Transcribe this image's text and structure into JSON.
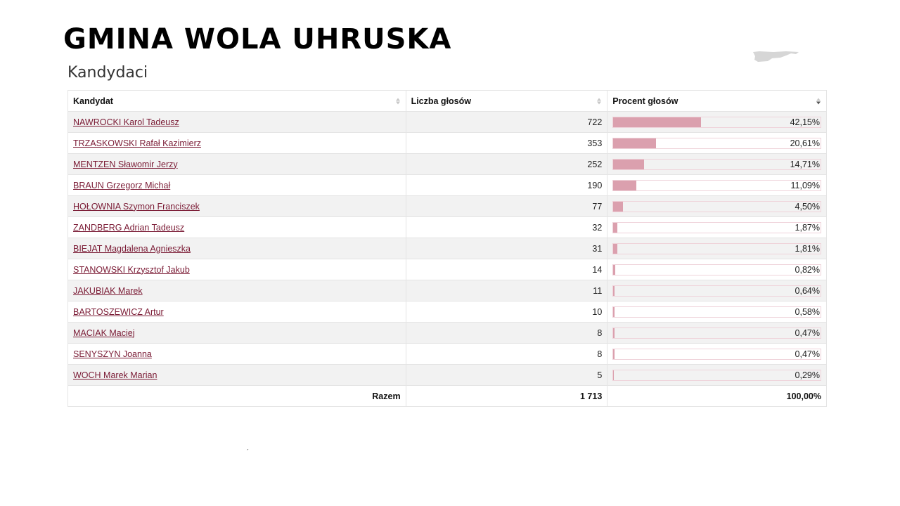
{
  "page": {
    "title": "GMINA WOLA UHRUSKA",
    "section_title": "Kandydaci",
    "map_icon": "region-map-icon",
    "stray_mark": "´"
  },
  "table": {
    "headers": {
      "candidate": "Kandydat",
      "votes": "Liczba głosów",
      "percent": "Procent głosów"
    },
    "sort_icon": "sort-arrows-icon",
    "rows": [
      {
        "name": "NAWROCKI Karol Tadeusz",
        "votes": "722",
        "percent": "42,15%",
        "pct_value": 42.15
      },
      {
        "name": "TRZASKOWSKI Rafał Kazimierz",
        "votes": "353",
        "percent": "20,61%",
        "pct_value": 20.61
      },
      {
        "name": "MENTZEN Sławomir Jerzy",
        "votes": "252",
        "percent": "14,71%",
        "pct_value": 14.71
      },
      {
        "name": "BRAUN Grzegorz Michał",
        "votes": "190",
        "percent": "11,09%",
        "pct_value": 11.09
      },
      {
        "name": "HOŁOWNIA Szymon Franciszek",
        "votes": "77",
        "percent": "4,50%",
        "pct_value": 4.5
      },
      {
        "name": "ZANDBERG Adrian Tadeusz",
        "votes": "32",
        "percent": "1,87%",
        "pct_value": 1.87
      },
      {
        "name": "BIEJAT Magdalena Agnieszka",
        "votes": "31",
        "percent": "1,81%",
        "pct_value": 1.81
      },
      {
        "name": "STANOWSKI Krzysztof Jakub",
        "votes": "14",
        "percent": "0,82%",
        "pct_value": 0.82
      },
      {
        "name": "JAKUBIAK Marek",
        "votes": "11",
        "percent": "0,64%",
        "pct_value": 0.64
      },
      {
        "name": "BARTOSZEWICZ Artur",
        "votes": "10",
        "percent": "0,58%",
        "pct_value": 0.58
      },
      {
        "name": "MACIAK Maciej",
        "votes": "8",
        "percent": "0,47%",
        "pct_value": 0.47
      },
      {
        "name": "SENYSZYN Joanna",
        "votes": "8",
        "percent": "0,47%",
        "pct_value": 0.47
      },
      {
        "name": "WOCH Marek Marian",
        "votes": "5",
        "percent": "0,29%",
        "pct_value": 0.29
      }
    ],
    "footer": {
      "label": "Razem",
      "votes": "1 713",
      "percent": "100,00%"
    }
  },
  "colors": {
    "link": "#7a1a34",
    "bar_fill": "#dba0ae",
    "bar_border": "#efd3da",
    "row_stripe": "#f2f2f2"
  }
}
